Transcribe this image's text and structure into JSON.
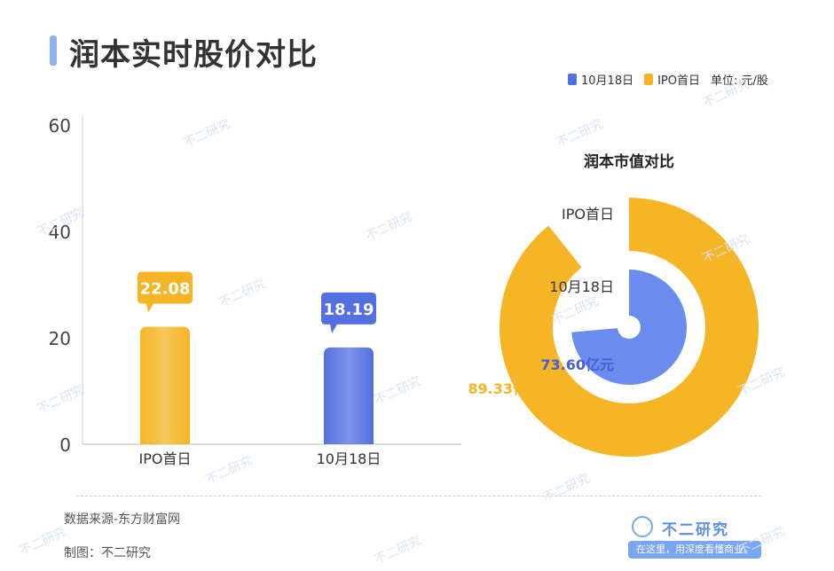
{
  "page": {
    "title": "润本实时股价对比",
    "unit": "单位: 元/股",
    "source": "数据来源-东方财富网",
    "maker": "制图：不二研究",
    "brand_name": "不二研究",
    "brand_slogan": "在这里，用深度看懂商业。",
    "watermark": "不二研究"
  },
  "legend": [
    {
      "label": "10月18日",
      "color": "#5470e0"
    },
    {
      "label": "IPO首日",
      "color": "#f5b524"
    }
  ],
  "chart_data": [
    {
      "type": "bar",
      "categories": [
        "IPO首日",
        "10月18日"
      ],
      "values": [
        22.08,
        18.19
      ],
      "colors": [
        "#f5b524",
        "#5470e0"
      ],
      "value_labels": [
        "22.08",
        "18.19"
      ],
      "ylim": [
        0,
        60
      ],
      "yticks": [
        0,
        20,
        40,
        60
      ],
      "unit": "元/股"
    },
    {
      "type": "pie",
      "title": "润本市值对比",
      "series": [
        {
          "label": "IPO首日",
          "value": 89.33,
          "value_label": "89.33亿元",
          "color": "#f5b524",
          "color_dark": "#f5b524"
        },
        {
          "label": "10月18日",
          "value": 73.6,
          "value_label": "73.60亿元",
          "color": "#6a8cef",
          "color_dark": "#4560d6"
        }
      ],
      "max_value": 100,
      "unit": "亿元"
    }
  ]
}
